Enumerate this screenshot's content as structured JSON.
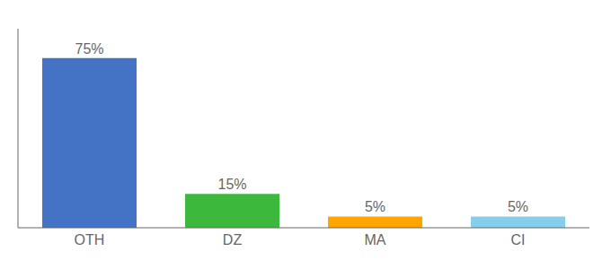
{
  "chart_data": {
    "type": "bar",
    "categories": [
      "OTH",
      "DZ",
      "MA",
      "CI"
    ],
    "values": [
      75,
      15,
      5,
      5
    ],
    "value_labels": [
      "75%",
      "15%",
      "5%",
      "5%"
    ],
    "data_labels": true,
    "colors": [
      "#4472C4",
      "#3CB93C",
      "#FFA500",
      "#87CEEB"
    ],
    "ylim": [
      0,
      88
    ],
    "grid": false,
    "tick_labels": "x"
  }
}
